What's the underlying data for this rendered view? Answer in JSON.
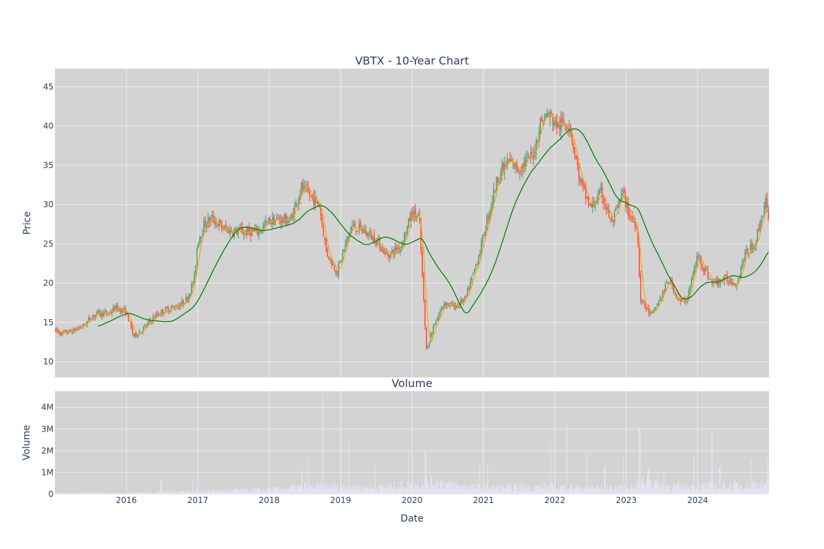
{
  "chart_data": [
    {
      "type": "candlestick",
      "title": "VBTX - 10-Year Chart",
      "ylabel": "Price",
      "ylim": [
        8,
        47.3
      ],
      "yticks": [
        10,
        15,
        20,
        25,
        30,
        35,
        40,
        45
      ],
      "xlim": [
        2015.0,
        2025.0
      ],
      "up_color": "#3d9970",
      "down_color": "#ff4136",
      "background": "#d3d3d3",
      "price_anchors": [
        [
          2015.0,
          14.0
        ],
        [
          2015.1,
          13.6
        ],
        [
          2015.25,
          13.9
        ],
        [
          2015.4,
          14.6
        ],
        [
          2015.5,
          15.6
        ],
        [
          2015.6,
          16.2
        ],
        [
          2015.75,
          16.1
        ],
        [
          2015.85,
          16.9
        ],
        [
          2016.0,
          16.3
        ],
        [
          2016.1,
          13.2
        ],
        [
          2016.25,
          14.3
        ],
        [
          2016.4,
          15.8
        ],
        [
          2016.55,
          16.6
        ],
        [
          2016.75,
          17.2
        ],
        [
          2016.85,
          18.0
        ],
        [
          2016.95,
          20.5
        ],
        [
          2017.0,
          25.5
        ],
        [
          2017.1,
          27.6
        ],
        [
          2017.2,
          28.2
        ],
        [
          2017.35,
          27.0
        ],
        [
          2017.5,
          26.6
        ],
        [
          2017.7,
          26.5
        ],
        [
          2017.85,
          26.6
        ],
        [
          2018.0,
          27.9
        ],
        [
          2018.15,
          28.1
        ],
        [
          2018.3,
          28.0
        ],
        [
          2018.45,
          32.2
        ],
        [
          2018.55,
          31.3
        ],
        [
          2018.7,
          30.0
        ],
        [
          2018.8,
          24.0
        ],
        [
          2018.95,
          21.4
        ],
        [
          2019.15,
          27.3
        ],
        [
          2019.3,
          26.8
        ],
        [
          2019.5,
          25.5
        ],
        [
          2019.65,
          23.5
        ],
        [
          2019.85,
          24.8
        ],
        [
          2020.0,
          29.0
        ],
        [
          2020.1,
          28.3
        ],
        [
          2020.2,
          11.5
        ],
        [
          2020.3,
          14.5
        ],
        [
          2020.45,
          17.5
        ],
        [
          2020.6,
          17.0
        ],
        [
          2020.75,
          18.0
        ],
        [
          2020.85,
          21.0
        ],
        [
          2020.95,
          24.0
        ],
        [
          2021.05,
          28.0
        ],
        [
          2021.2,
          33.5
        ],
        [
          2021.35,
          35.5
        ],
        [
          2021.5,
          34.5
        ],
        [
          2021.7,
          36.5
        ],
        [
          2021.8,
          40.5
        ],
        [
          2021.9,
          41.5
        ],
        [
          2022.05,
          40.0
        ],
        [
          2022.2,
          40.5
        ],
        [
          2022.35,
          33.0
        ],
        [
          2022.5,
          29.5
        ],
        [
          2022.65,
          31.5
        ],
        [
          2022.8,
          27.5
        ],
        [
          2022.95,
          31.5
        ],
        [
          2023.05,
          28.5
        ],
        [
          2023.15,
          27.5
        ],
        [
          2023.2,
          18.0
        ],
        [
          2023.35,
          15.8
        ],
        [
          2023.5,
          18.5
        ],
        [
          2023.6,
          20.5
        ],
        [
          2023.75,
          17.5
        ],
        [
          2023.85,
          18.0
        ],
        [
          2024.0,
          23.5
        ],
        [
          2024.2,
          20.0
        ],
        [
          2024.4,
          20.5
        ],
        [
          2024.55,
          20.0
        ],
        [
          2024.65,
          23.5
        ],
        [
          2024.8,
          25.0
        ],
        [
          2024.95,
          30.5
        ],
        [
          2025.0,
          27.0
        ]
      ],
      "series": [
        {
          "color": "#ffa500",
          "type": "ma_short",
          "window": 0.09
        },
        {
          "color": "#008000",
          "type": "ma_long",
          "window": 0.6,
          "start": 2015.6
        }
      ]
    },
    {
      "type": "bar",
      "title": "Volume",
      "ylabel": "Volume",
      "xlabel": "Date",
      "ylim": [
        0,
        4750000
      ],
      "yticks": [
        {
          "value": 0,
          "label": "0"
        },
        {
          "value": 1000000,
          "label": "1M"
        },
        {
          "value": 2000000,
          "label": "2M"
        },
        {
          "value": 3000000,
          "label": "3M"
        },
        {
          "value": 4000000,
          "label": "4M"
        }
      ],
      "xlim": [
        2015.0,
        2025.0
      ],
      "xticks": [
        {
          "value": 2016,
          "label": "2016"
        },
        {
          "value": 2017,
          "label": "2017"
        },
        {
          "value": 2018,
          "label": "2018"
        },
        {
          "value": 2019,
          "label": "2019"
        },
        {
          "value": 2020,
          "label": "2020"
        },
        {
          "value": 2021,
          "label": "2021"
        },
        {
          "value": 2022,
          "label": "2022"
        },
        {
          "value": 2023,
          "label": "2023"
        },
        {
          "value": 2024,
          "label": "2024"
        }
      ],
      "bar_color": "#e4e4f5",
      "background": "#d3d3d3",
      "volume_anchors": [
        [
          2015.0,
          40000
        ],
        [
          2016.0,
          60000
        ],
        [
          2016.5,
          100000
        ],
        [
          2017.0,
          150000
        ],
        [
          2018.0,
          200000
        ],
        [
          2018.5,
          350000
        ],
        [
          2019.0,
          350000
        ],
        [
          2019.5,
          300000
        ],
        [
          2020.0,
          450000
        ],
        [
          2020.3,
          550000
        ],
        [
          2020.6,
          400000
        ],
        [
          2021.0,
          300000
        ],
        [
          2022.0,
          350000
        ],
        [
          2022.5,
          300000
        ],
        [
          2023.0,
          300000
        ],
        [
          2023.3,
          600000
        ],
        [
          2023.6,
          350000
        ],
        [
          2024.0,
          350000
        ],
        [
          2024.5,
          400000
        ],
        [
          2025.0,
          500000
        ]
      ],
      "volume_spikes": [
        [
          2016.49,
          700000
        ],
        [
          2016.93,
          550000
        ],
        [
          2018.46,
          1100000
        ],
        [
          2018.55,
          1800000
        ],
        [
          2018.75,
          4550000
        ],
        [
          2019.12,
          2600000
        ],
        [
          2019.48,
          1500000
        ],
        [
          2019.95,
          1900000
        ],
        [
          2020.19,
          2000000
        ],
        [
          2020.95,
          1500000
        ],
        [
          2021.06,
          1400000
        ],
        [
          2021.94,
          2350000
        ],
        [
          2022.17,
          3250000
        ],
        [
          2022.45,
          1900000
        ],
        [
          2022.7,
          1300000
        ],
        [
          2022.96,
          1700000
        ],
        [
          2023.19,
          3050000
        ],
        [
          2023.31,
          1150000
        ],
        [
          2023.53,
          1050000
        ],
        [
          2023.95,
          1750000
        ],
        [
          2024.2,
          2750000
        ],
        [
          2024.31,
          1250000
        ],
        [
          2024.75,
          1600000
        ],
        [
          2024.98,
          1650000
        ]
      ]
    }
  ]
}
